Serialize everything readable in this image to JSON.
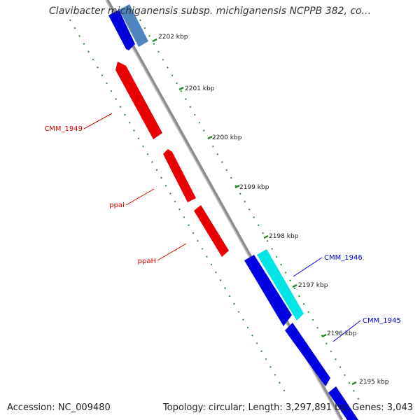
{
  "title": "Clavibacter michiganensis subsp. michiganensis NCPPB 382, co...",
  "footer": {
    "accession": "Accession: NC_009480",
    "stats": "Topology: circular; Length: 3,297,891 bp; Genes: 3,043"
  },
  "ticks": [
    "2202 kbp",
    "2201 kbp",
    "2200 kbp",
    "2199 kbp",
    "2198 kbp",
    "2197 kbp",
    "2196 kbp",
    "2195 kbp"
  ],
  "genes": [
    {
      "label": "CMM_1949",
      "color": "#ff0000"
    },
    {
      "label": "ppaI",
      "color": "#ff0000"
    },
    {
      "label": "ppaH",
      "color": "#ff0000"
    },
    {
      "label": "CMM_1946",
      "color": "#0000ff"
    },
    {
      "label": "CMM_1945",
      "color": "#0000ff"
    }
  ],
  "colors": {
    "backbone": "#8c8c8c",
    "forward_strand": "#0000ff",
    "reverse_strand": "#ff0000",
    "highlight": "#00e5e5",
    "steelblue": "#4f86c0",
    "gc_dots": "#2d8a2d"
  }
}
